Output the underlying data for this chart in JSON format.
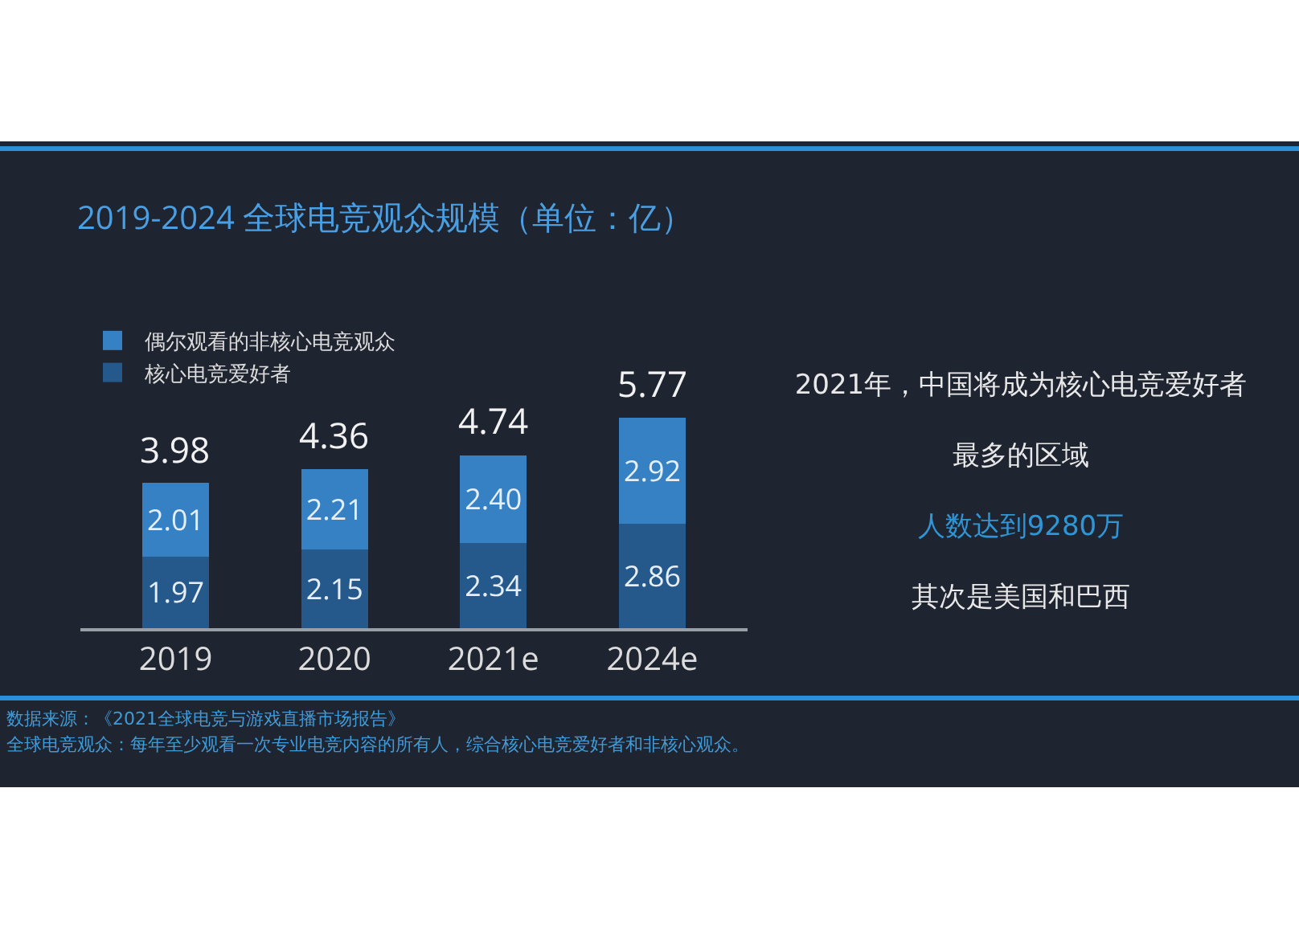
{
  "chart_data": {
    "type": "bar",
    "title": "2019-2024 全球电竞观众规模（单位：亿）",
    "categories": [
      "2019",
      "2020",
      "2021e",
      "2024e"
    ],
    "stacked": true,
    "series": [
      {
        "name": "核心电竞爱好者",
        "color": "#25598c",
        "values": [
          1.97,
          2.15,
          2.34,
          2.86
        ],
        "value_labels": [
          "1.97",
          "2.15",
          "2.34",
          "2.86"
        ]
      },
      {
        "name": "偶尔观看的非核心电竞观众",
        "color": "#3581c3",
        "values": [
          2.01,
          2.21,
          2.4,
          2.92
        ],
        "value_labels": [
          "2.01",
          "2.21",
          "2.40",
          "2.92"
        ]
      }
    ],
    "totals": [
      "3.98",
      "4.36",
      "4.74",
      "5.77"
    ],
    "legend": "top left",
    "annotations": [
      "2021年，中国将成为核心电竞爱好者",
      "最多的区域",
      "人数达到9280万",
      "其次是美国和巴西",
      "数据来源：《2021全球电竞与游戏直播市场报告》",
      "全球电竞观众：每年至少观看一次专业电竞内容的所有人，综合核心电竞爱好者和非核心观众。"
    ]
  }
}
